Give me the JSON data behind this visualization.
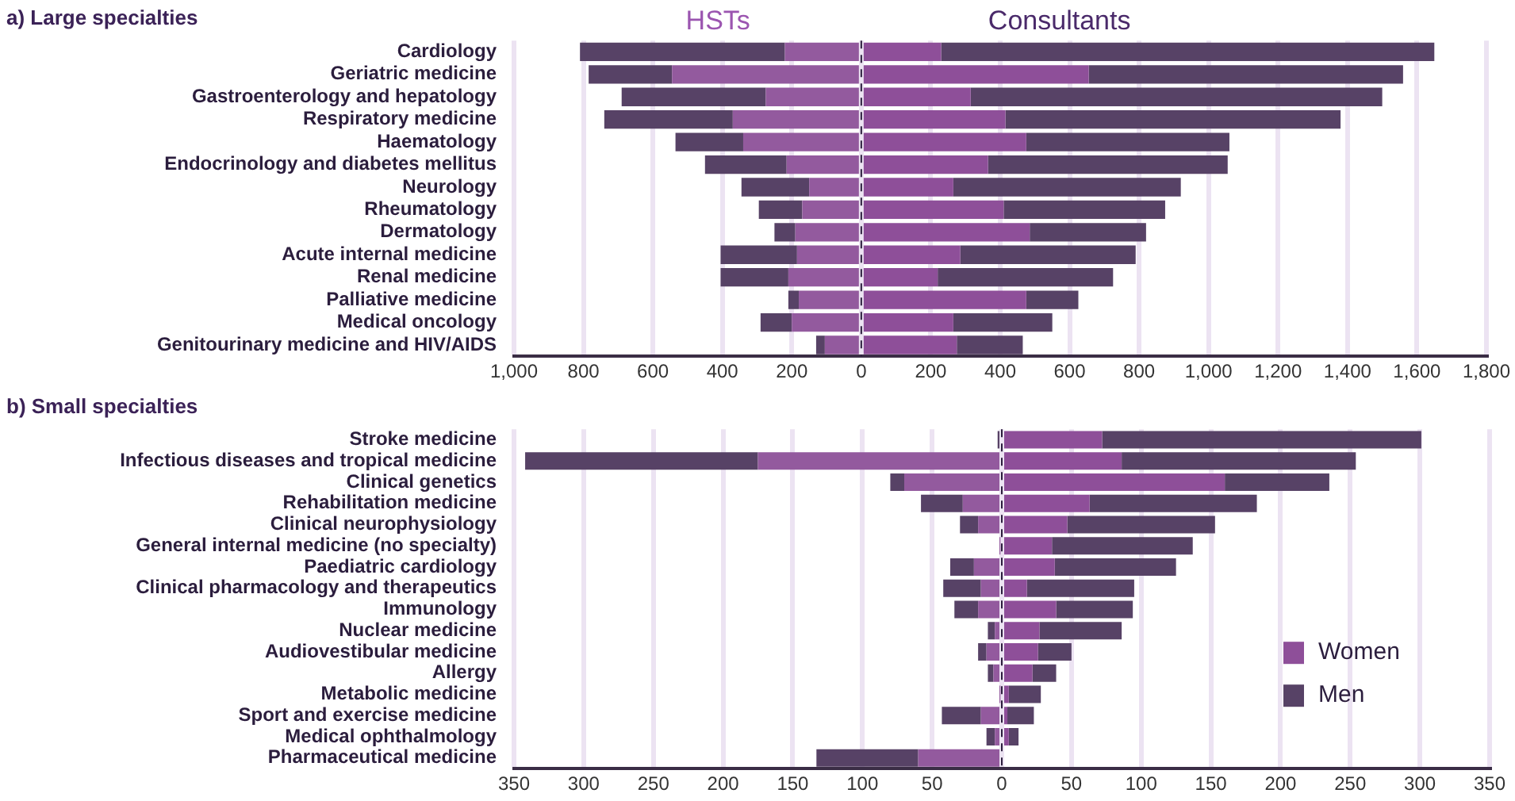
{
  "chart_data": [
    {
      "type": "bar",
      "title": "a) Large specialties",
      "orientation": "horizontal",
      "stacked": true,
      "grid": "x",
      "legend": false,
      "annotations": [
        "HSTs",
        "Consultants"
      ],
      "categories": [
        "Cardiology",
        "Geriatric medicine",
        "Gastroenterology and hepatology",
        "Respiratory medicine",
        "Haematology",
        "Endocrinology and diabetes mellitus",
        "Neurology",
        "Rheumatology",
        "Dermatology",
        "Acute internal medicine",
        "Renal medicine",
        "Palliative medicine",
        "Medical oncology",
        "Genitourinary medicine and HIV/AIDS"
      ],
      "series": [
        {
          "color": "#935a9e",
          "values": [
            -220,
            -545,
            -275,
            -370,
            -340,
            -215,
            -150,
            -170,
            -190,
            -185,
            -210,
            -180,
            -200,
            -105
          ]
        },
        {
          "color": "#574266",
          "values": [
            -590,
            -240,
            -415,
            -370,
            -195,
            -235,
            -195,
            -125,
            -60,
            -220,
            -195,
            -30,
            -90,
            -25
          ]
        },
        {
          "color": "#8e4f99",
          "values": [
            230,
            655,
            315,
            415,
            475,
            365,
            265,
            410,
            485,
            285,
            220,
            475,
            265,
            275
          ]
        },
        {
          "color": "#574266",
          "values": [
            1420,
            905,
            1185,
            965,
            585,
            690,
            655,
            465,
            335,
            505,
            505,
            150,
            285,
            190
          ]
        }
      ],
      "xlim": [
        -1000,
        1800
      ],
      "xticks": [
        {
          "value": -1000,
          "label": "1,000"
        },
        {
          "value": -800,
          "label": "800"
        },
        {
          "value": -600,
          "label": "600"
        },
        {
          "value": -400,
          "label": "400"
        },
        {
          "value": -200,
          "label": "200"
        },
        0,
        200,
        400,
        600,
        800,
        {
          "value": 1000,
          "label": "1,000"
        },
        {
          "value": 1200,
          "label": "1,200"
        },
        {
          "value": 1400,
          "label": "1,400"
        },
        {
          "value": 1600,
          "label": "1,600"
        },
        {
          "value": 1800,
          "label": "1,800"
        }
      ],
      "ref_lines": [
        {
          "axis": "x",
          "value": 0,
          "line_style": "dashed",
          "color": "#2b1d3d"
        }
      ]
    },
    {
      "type": "bar",
      "title": "b) Small specialties",
      "orientation": "horizontal",
      "stacked": true,
      "grid": "x",
      "legend": "bottom right",
      "categories": [
        "Stroke medicine",
        "Infectious diseases and tropical medicine",
        "Clinical genetics",
        "Rehabilitation medicine",
        "Clinical neurophysiology",
        "General internal medicine (no specialty)",
        "Paediatric cardiology",
        "Clinical pharmacology and therapeutics",
        "Immunology",
        "Nuclear medicine",
        "Audiovestibular medicine",
        "Allergy",
        "Metabolic medicine",
        "Sport and exercise medicine",
        "Medical ophthalmology",
        "Pharmaceutical medicine"
      ],
      "series": [
        {
          "color": "#935a9e",
          "values": [
            null,
            -175,
            -70,
            -28,
            -17,
            -1,
            -20,
            -15,
            -17,
            -5,
            -11,
            -6,
            -1,
            -15,
            -5,
            -60
          ]
        },
        {
          "color": "#574266",
          "values": [
            -3,
            -167,
            -10,
            -30,
            -13,
            null,
            -17,
            -27,
            -17,
            -5,
            -6,
            -4,
            null,
            -28,
            -6,
            -73
          ]
        },
        {
          "name": "Women",
          "color": "#8e4f99",
          "values": [
            72,
            86,
            160,
            63,
            47,
            36,
            38,
            18,
            39,
            27,
            26,
            22,
            5,
            4,
            5,
            null
          ]
        },
        {
          "name": "Men",
          "color": "#574266",
          "values": [
            229,
            168,
            75,
            120,
            106,
            101,
            87,
            77,
            55,
            59,
            24,
            17,
            23,
            19,
            7,
            null
          ]
        }
      ],
      "xlim": [
        -350,
        350
      ],
      "xticks": [
        {
          "value": -350,
          "label": "350"
        },
        {
          "value": -300,
          "label": "300"
        },
        {
          "value": -250,
          "label": "250"
        },
        {
          "value": -200,
          "label": "200"
        },
        {
          "value": -150,
          "label": "150"
        },
        {
          "value": -100,
          "label": "100"
        },
        {
          "value": -50,
          "label": "50"
        },
        0,
        50,
        100,
        150,
        200,
        250,
        300,
        350
      ],
      "ref_lines": [
        {
          "axis": "x",
          "value": 0,
          "line_style": "dashed",
          "color": "#2b1d3d"
        }
      ]
    }
  ]
}
